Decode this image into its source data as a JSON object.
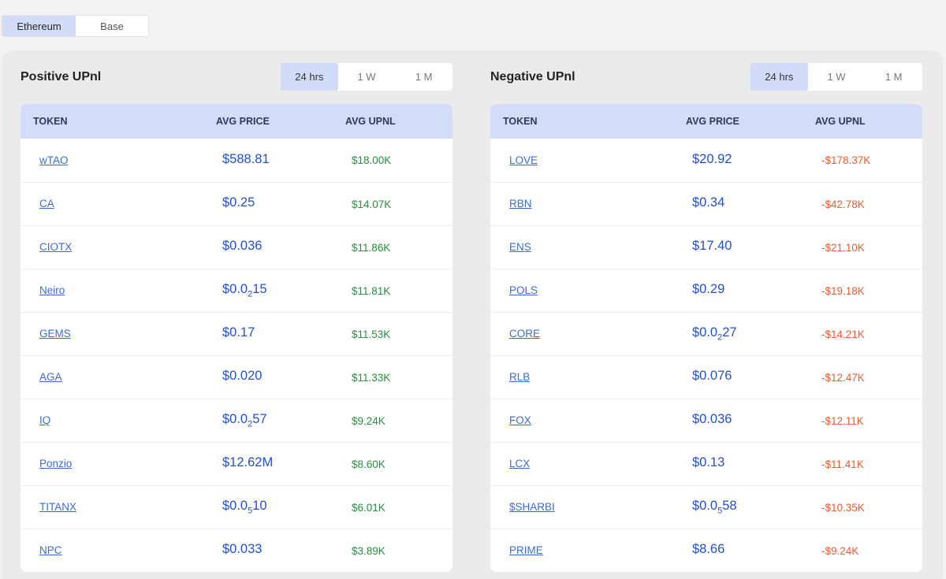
{
  "chain_tabs": [
    {
      "label": "Ethereum",
      "active": true
    },
    {
      "label": "Base",
      "active": false
    }
  ],
  "range_tabs": [
    "24 hrs",
    "1 W",
    "1 M"
  ],
  "headers": {
    "token": "TOKEN",
    "avg_price": "AVG PRICE",
    "avg_upnl": "AVG UPNL"
  },
  "positive": {
    "title": "Positive UPnl",
    "active_range": "24 hrs",
    "rows": [
      {
        "token": "wTAO",
        "price_pre": "$588.81",
        "price_sub": "",
        "price_post": "",
        "upnl": "$18.00K"
      },
      {
        "token": "CA",
        "price_pre": "$0.25",
        "price_sub": "",
        "price_post": "",
        "upnl": "$14.07K"
      },
      {
        "token": "CIOTX",
        "price_pre": "$0.036",
        "price_sub": "",
        "price_post": "",
        "upnl": "$11.86K"
      },
      {
        "token": "Neiro",
        "price_pre": "$0.0",
        "price_sub": "2",
        "price_post": "15",
        "upnl": "$11.81K"
      },
      {
        "token": "GEMS",
        "price_pre": "$0.17",
        "price_sub": "",
        "price_post": "",
        "upnl": "$11.53K"
      },
      {
        "token": "AGA",
        "price_pre": "$0.020",
        "price_sub": "",
        "price_post": "",
        "upnl": "$11.33K"
      },
      {
        "token": "IQ",
        "price_pre": "$0.0",
        "price_sub": "2",
        "price_post": "57",
        "upnl": "$9.24K"
      },
      {
        "token": "Ponzio",
        "price_pre": "$12.62M",
        "price_sub": "",
        "price_post": "",
        "upnl": "$8.60K"
      },
      {
        "token": "TITANX",
        "price_pre": "$0.0",
        "price_sub": "5",
        "price_post": "10",
        "upnl": "$6.01K"
      },
      {
        "token": "NPC",
        "price_pre": "$0.033",
        "price_sub": "",
        "price_post": "",
        "upnl": "$3.89K"
      }
    ]
  },
  "negative": {
    "title": "Negative UPnl",
    "active_range": "24 hrs",
    "rows": [
      {
        "token": "LOVE",
        "price_pre": "$20.92",
        "price_sub": "",
        "price_post": "",
        "upnl": "-$178.37K"
      },
      {
        "token": "RBN",
        "price_pre": "$0.34",
        "price_sub": "",
        "price_post": "",
        "upnl": "-$42.78K"
      },
      {
        "token": "ENS",
        "price_pre": "$17.40",
        "price_sub": "",
        "price_post": "",
        "upnl": "-$21.10K"
      },
      {
        "token": "POLS",
        "price_pre": "$0.29",
        "price_sub": "",
        "price_post": "",
        "upnl": "-$19.18K"
      },
      {
        "token": "CORE",
        "price_pre": "$0.0",
        "price_sub": "2",
        "price_post": "27",
        "upnl": "-$14.21K"
      },
      {
        "token": "RLB",
        "price_pre": "$0.076",
        "price_sub": "",
        "price_post": "",
        "upnl": "-$12.47K"
      },
      {
        "token": "FOX",
        "price_pre": "$0.036",
        "price_sub": "",
        "price_post": "",
        "upnl": "-$12.11K"
      },
      {
        "token": "LCX",
        "price_pre": "$0.13",
        "price_sub": "",
        "price_post": "",
        "upnl": "-$11.41K"
      },
      {
        "token": "$SHARBI",
        "price_pre": "$0.0",
        "price_sub": "5",
        "price_post": "58",
        "upnl": "-$10.35K"
      },
      {
        "token": "PRIME",
        "price_pre": "$8.66",
        "price_sub": "",
        "price_post": "",
        "upnl": "-$9.24K"
      }
    ]
  },
  "colors": {
    "accent": "#d2dcf9",
    "price": "#2450c9",
    "positive": "#23913d",
    "negative": "#f05a2a",
    "link": "#3a6bd6"
  }
}
